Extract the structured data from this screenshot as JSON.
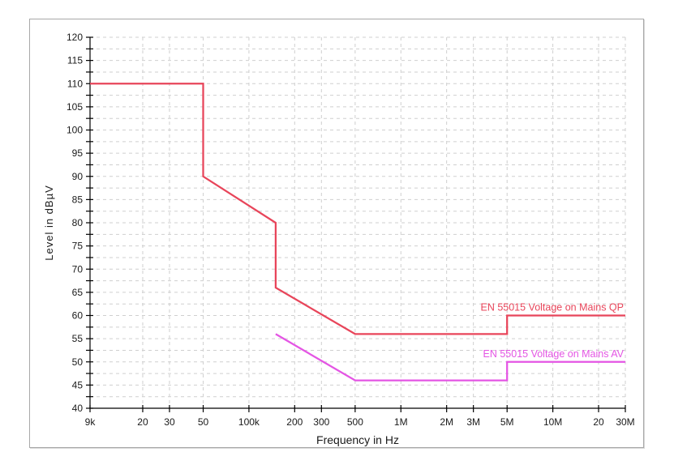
{
  "figure": {
    "background": "#ffffff",
    "panel_border_color": "#a8a8a8"
  },
  "chart_data": {
    "type": "line",
    "title": "",
    "xlabel": "Frequency in Hz",
    "ylabel": "Level in dBµV",
    "x_scale": "log",
    "x_range_hz": [
      9000,
      30000000
    ],
    "x_ticks": [
      {
        "hz": 9000,
        "label": "9k"
      },
      {
        "hz": 20000,
        "label": "20"
      },
      {
        "hz": 30000,
        "label": "30"
      },
      {
        "hz": 50000,
        "label": "50"
      },
      {
        "hz": 100000,
        "label": "100k"
      },
      {
        "hz": 200000,
        "label": "200"
      },
      {
        "hz": 300000,
        "label": "300"
      },
      {
        "hz": 500000,
        "label": "500"
      },
      {
        "hz": 1000000,
        "label": "1M"
      },
      {
        "hz": 2000000,
        "label": "2M"
      },
      {
        "hz": 3000000,
        "label": "3M"
      },
      {
        "hz": 5000000,
        "label": "5M"
      },
      {
        "hz": 10000000,
        "label": "10M"
      },
      {
        "hz": 20000000,
        "label": "20"
      },
      {
        "hz": 30000000,
        "label": "30M"
      }
    ],
    "ylim": [
      40,
      120
    ],
    "y_major_step": 5,
    "y_minor_step": 2.5,
    "grid": {
      "style": "dashed",
      "color": "#cfcfcf",
      "dash": "4 4"
    },
    "axis_color": "#000000",
    "legend_position": "inline-right-above-line",
    "series": [
      {
        "name": "EN 55015 Voltage on Mains QP",
        "color": "#e8455a",
        "points": [
          [
            9000,
            110
          ],
          [
            50000,
            110
          ],
          [
            50000,
            90
          ],
          [
            150000,
            80
          ],
          [
            150000,
            66
          ],
          [
            500000,
            56
          ],
          [
            5000000,
            56
          ],
          [
            5000000,
            60
          ],
          [
            30000000,
            60
          ]
        ]
      },
      {
        "name": "EN 55015 Voltage on Mains AV",
        "color": "#e455e4",
        "points": [
          [
            150000,
            56
          ],
          [
            500000,
            46
          ],
          [
            5000000,
            46
          ],
          [
            5000000,
            50
          ],
          [
            30000000,
            50
          ]
        ]
      }
    ]
  }
}
